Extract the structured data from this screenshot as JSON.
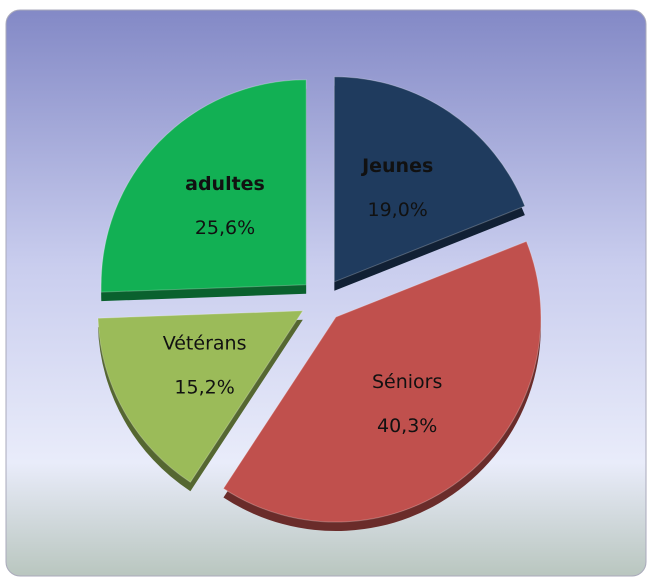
{
  "chart_data": {
    "type": "pie",
    "categories": [
      "Jeunes",
      "Séniors",
      "Vétérans",
      "adultes"
    ],
    "values": [
      19.0,
      40.3,
      15.2,
      25.6
    ],
    "value_labels": [
      "19,0%",
      "40,3%",
      "15,2%",
      "25,6%"
    ],
    "colors": [
      "#1f3b5e",
      "#c0504d",
      "#9bbb59",
      "#12b054"
    ]
  }
}
